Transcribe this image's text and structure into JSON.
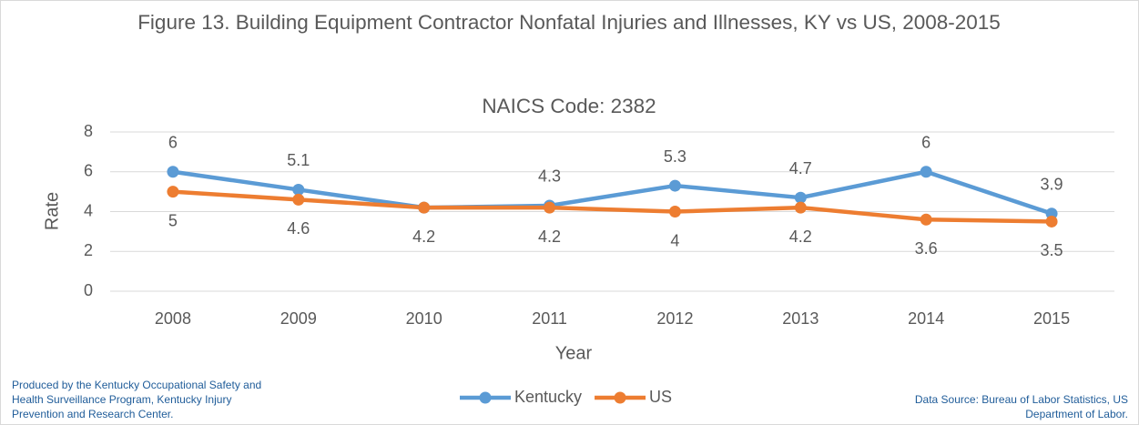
{
  "chart_data": {
    "type": "line",
    "title": "Figure 13. Building Equipment Contractor Nonfatal Injuries and Illnesses, KY vs US, 2008-2015",
    "subtitle": "NAICS Code: 2382",
    "x_label": "Year",
    "y_label": "Rate",
    "categories": [
      "2008",
      "2009",
      "2010",
      "2011",
      "2012",
      "2013",
      "2014",
      "2015"
    ],
    "series": [
      {
        "name": "Kentucky",
        "color": "#5b9bd5",
        "values": [
          6,
          5.1,
          4.2,
          4.3,
          5.3,
          4.7,
          6,
          3.9
        ],
        "value_labels": [
          "6",
          "5.1",
          null,
          "4.3",
          "5.3",
          "4.7",
          "6",
          "3.9"
        ],
        "label_position": "above"
      },
      {
        "name": "US",
        "color": "#ed7d31",
        "values": [
          5,
          4.6,
          4.2,
          4.2,
          4,
          4.2,
          3.6,
          3.5
        ],
        "label_position": "below"
      }
    ],
    "ylim": [
      0,
      8
    ],
    "yticks": [
      0,
      2,
      4,
      6,
      8
    ],
    "grid": true,
    "legend": "bottom",
    "notes": {
      "left": "Produced by the Kentucky Occupational Safety and Health Surveillance Program, Kentucky Injury Prevention and Research Center.",
      "right": "Data Source: Bureau of Labor Statistics, US Department of Labor."
    }
  }
}
